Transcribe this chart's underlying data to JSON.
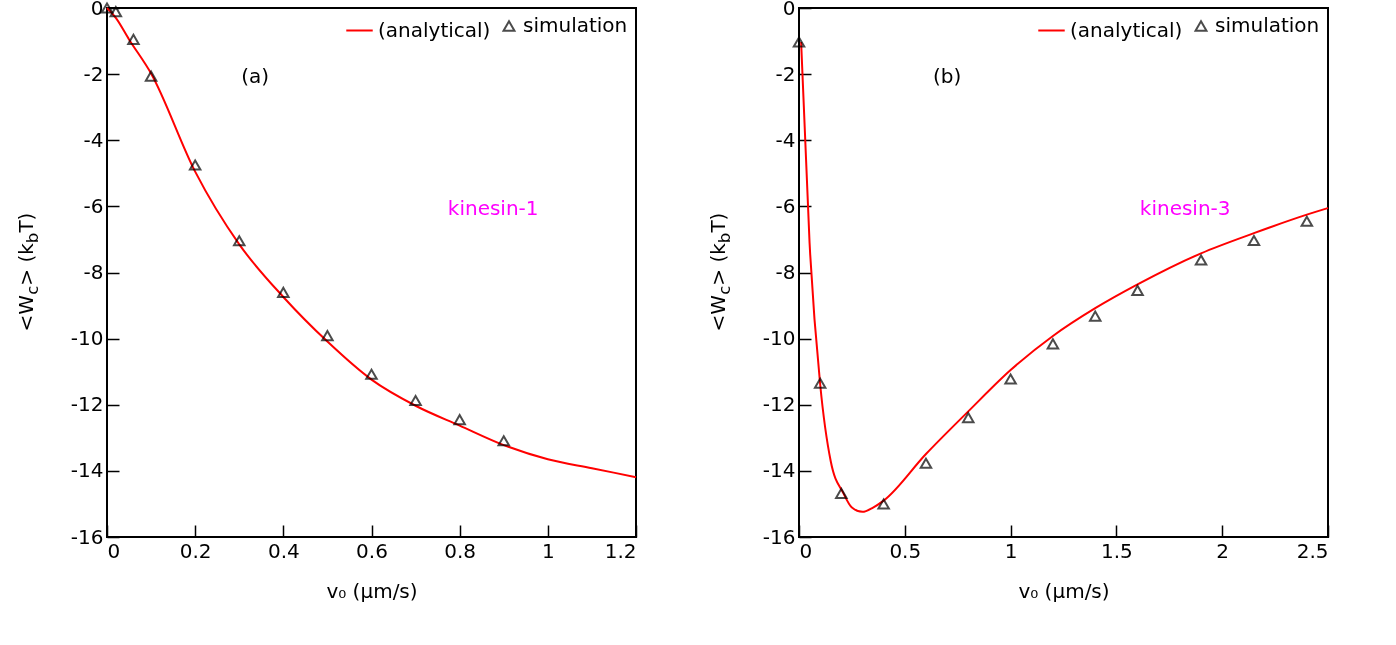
{
  "chart_data": [
    {
      "type": "scatter",
      "xlabel": "v₀ (µm/s)",
      "ylabel": "<W$_{c}$> (k$_{b}$T)",
      "xlim": [
        0,
        1.2
      ],
      "ylim": [
        -16,
        0
      ],
      "xticks": [
        0,
        0.2,
        0.4,
        0.6,
        0.8,
        1,
        1.2
      ],
      "yticks": [
        -16,
        -14,
        -12,
        -10,
        -8,
        -6,
        -4,
        -2,
        0
      ],
      "legend": "top right",
      "annotations": [
        "(a)",
        "kinesin-1"
      ],
      "series": [
        {
          "name": "simulation",
          "marker": "triangle",
          "color": "#000000",
          "x": [
            0,
            0.02,
            0.06,
            0.1,
            0.2,
            0.3,
            0.4,
            0.5,
            0.6,
            0.7,
            0.8,
            0.9
          ],
          "values": [
            0,
            -0.11,
            -0.95,
            -2.06,
            -4.75,
            -7.04,
            -8.6,
            -9.91,
            -11.08,
            -11.87,
            -12.45,
            -13.09
          ]
        },
        {
          "name": "(analytical)",
          "type": "line",
          "line_style": "solid",
          "color": "#ff0000",
          "x": [
            0,
            0.02,
            0.05,
            0.1,
            0.2,
            0.3,
            0.4,
            0.5,
            0.6,
            0.7,
            0.8,
            0.9,
            1.0,
            1.1,
            1.2
          ],
          "values": [
            0,
            -0.3,
            -0.95,
            -1.98,
            -4.95,
            -7.15,
            -8.74,
            -10.09,
            -11.24,
            -12.03,
            -12.63,
            -13.22,
            -13.65,
            -13.92,
            -14.19
          ]
        }
      ]
    },
    {
      "type": "scatter",
      "xlabel": "v₀ (µm/s)",
      "ylabel": "<W$_{c}$> (k$_{b}$T)",
      "xlim": [
        0,
        2.5
      ],
      "ylim": [
        -16,
        0
      ],
      "xticks": [
        0,
        0.5,
        1,
        1.5,
        2,
        2.5
      ],
      "yticks": [
        -16,
        -14,
        -12,
        -10,
        -8,
        -6,
        -4,
        -2,
        0
      ],
      "legend": "top right",
      "annotations": [
        "(b)",
        "kinesin-3"
      ],
      "series": [
        {
          "name": "simulation",
          "marker": "triangle",
          "color": "#000000",
          "x": [
            0,
            0.1,
            0.2,
            0.4,
            0.6,
            0.8,
            1.0,
            1.2,
            1.4,
            1.6,
            1.9,
            2.15,
            2.4
          ],
          "values": [
            -1.03,
            -11.35,
            -14.68,
            -15.0,
            -13.77,
            -12.39,
            -11.22,
            -10.16,
            -9.32,
            -8.54,
            -7.62,
            -7.03,
            -6.45
          ]
        },
        {
          "name": "(analytical)",
          "type": "line",
          "line_style": "solid",
          "color": "#ff0000",
          "x": [
            0.01,
            0.05,
            0.1,
            0.15,
            0.21,
            0.25,
            0.3,
            0.35,
            0.4,
            0.6,
            0.8,
            1.0,
            1.2,
            1.4,
            1.6,
            1.9,
            2.15,
            2.4,
            2.5
          ],
          "values": [
            -1.03,
            -7.11,
            -11.38,
            -13.71,
            -14.68,
            -15.11,
            -15.24,
            -15.11,
            -14.9,
            -13.49,
            -12.2,
            -10.95,
            -9.92,
            -9.08,
            -8.36,
            -7.42,
            -6.81,
            -6.25,
            -6.05
          ]
        }
      ]
    }
  ]
}
